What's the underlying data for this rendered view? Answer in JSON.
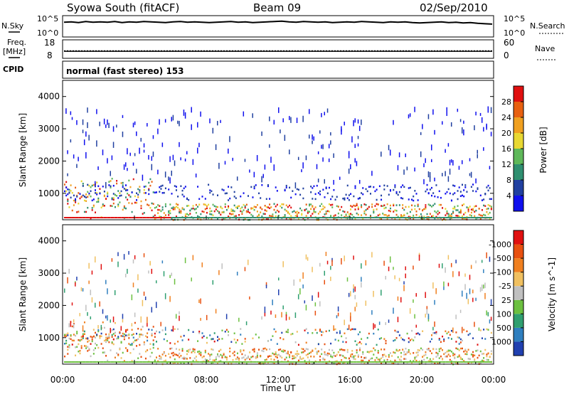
{
  "header": {
    "title": "Syowa South (fitACF)",
    "beam": "Beam 09",
    "date": "02/Sep/2010"
  },
  "noise_panel": {
    "left_label": "N.Sky",
    "right_label": "N.Search",
    "left_ticks": [
      "10^5",
      "10^0"
    ],
    "right_ticks": [
      "10^5",
      "10^0"
    ],
    "log_range": [
      0,
      5
    ],
    "level_trace": [
      3.6,
      3.7,
      3.5,
      3.8,
      3.6,
      3.7,
      3.6,
      3.8,
      3.5,
      3.7,
      3.6,
      3.8,
      3.7,
      3.6,
      3.5,
      3.7,
      3.8,
      3.6,
      3.7,
      3.6,
      3.5,
      3.6,
      3.7,
      3.8,
      3.6,
      3.7,
      3.5,
      3.6,
      3.7,
      3.8,
      3.9,
      3.7,
      3.6,
      3.8,
      3.7,
      3.6,
      3.7,
      3.5,
      3.6,
      3.7,
      3.6,
      3.8,
      3.7,
      3.6,
      3.5,
      3.7,
      3.6,
      3.7,
      3.5,
      3.4,
      3.5,
      3.6,
      3.7,
      3.5,
      3.6,
      3.4,
      3.5,
      3.3,
      3.2,
      3.1
    ]
  },
  "freq_panel": {
    "left_label": "Freq.",
    "left_unit": "[MHz]",
    "right_label": "Nave",
    "left_ticks": [
      "18",
      "8"
    ],
    "right_ticks": [
      "60",
      "0"
    ],
    "freq_range": [
      8,
      18
    ],
    "nave_range": [
      0,
      60
    ],
    "freq_trace_mhz": 11.6,
    "nave_trace": 24
  },
  "cpid": {
    "label": "CPID",
    "value": "normal (fast stereo) 153"
  },
  "chart_data": [
    {
      "type": "heatmap",
      "name": "power",
      "ylabel": "Slant Range [km]",
      "ylim": [
        180,
        4500
      ],
      "yticks": [
        1000,
        2000,
        3000,
        4000
      ],
      "xlim_hours": [
        0,
        24
      ],
      "colorbar": {
        "label": "Power [dB]",
        "tick_labels": [
          "4",
          "8",
          "12",
          "16",
          "20",
          "24",
          "28"
        ],
        "colors": [
          "#1010ee",
          "#2040a0",
          "#2f8f70",
          "#5fb85a",
          "#e8d832",
          "#f0a020",
          "#e86010",
          "#e01010"
        ]
      }
    },
    {
      "type": "heatmap",
      "name": "velocity",
      "ylabel": "Slant Range [km]",
      "ylim": [
        180,
        4500
      ],
      "yticks": [
        1000,
        2000,
        3000,
        4000
      ],
      "xlim_hours": [
        0,
        24
      ],
      "xlabel": "Time UT",
      "xtick_labels": [
        "00:00",
        "04:00",
        "08:00",
        "12:00",
        "16:00",
        "20:00",
        "00:00"
      ],
      "colorbar": {
        "label": "Velocity [m s^-1]",
        "tick_labels": [
          "1000",
          "500",
          "100",
          "25",
          "-25",
          "-100",
          "-500",
          "-1000"
        ],
        "colors": [
          "#2040b0",
          "#2f7fbf",
          "#2f9f70",
          "#6cc040",
          "#c0c0c0",
          "#f0c060",
          "#f08020",
          "#e85010",
          "#e01010"
        ]
      }
    }
  ]
}
